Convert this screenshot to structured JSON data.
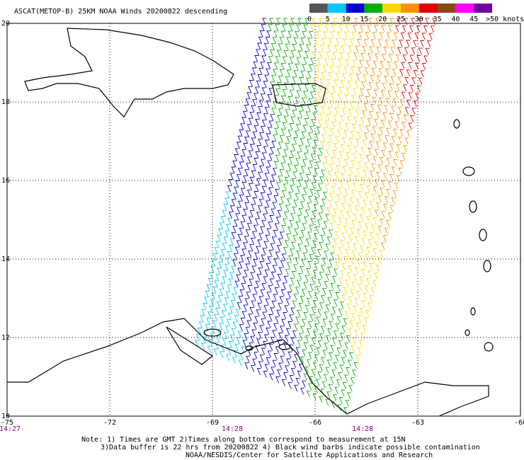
{
  "header": {
    "title": "ASCAT(METOP-B) 25KM NOAA Winds 20200822 descending"
  },
  "map": {
    "xlim": [
      -75,
      -60
    ],
    "ylim": [
      10,
      20
    ],
    "xticks": [
      -75,
      -72,
      -69,
      -66,
      -63,
      -60
    ],
    "yticks": [
      20,
      18,
      16,
      14,
      12,
      10
    ],
    "grid": true,
    "time_labels": [
      "14:27",
      "14:28",
      "14:28"
    ]
  },
  "colorbar": {
    "ticks": [
      0,
      5,
      10,
      15,
      20,
      25,
      30,
      35,
      40,
      45
    ],
    "colors": [
      "#555555",
      "#00c8ff",
      "#0000d0",
      "#00b000",
      "#ffd700",
      "#ff9000",
      "#e00000",
      "#8b4513",
      "#ff00ff",
      "#7000a0"
    ],
    "end_label": ">50 knots"
  },
  "notes": [
    "Note: 1) Times are GMT 2)Times along bottom correspond to measurement at 15N",
    "3)Data buffer is 22 hrs from 20200822 4) Black wind barbs indicate possible contamination",
    "NOAA/NESDIS/Center for Satellite Applications and Research"
  ]
}
